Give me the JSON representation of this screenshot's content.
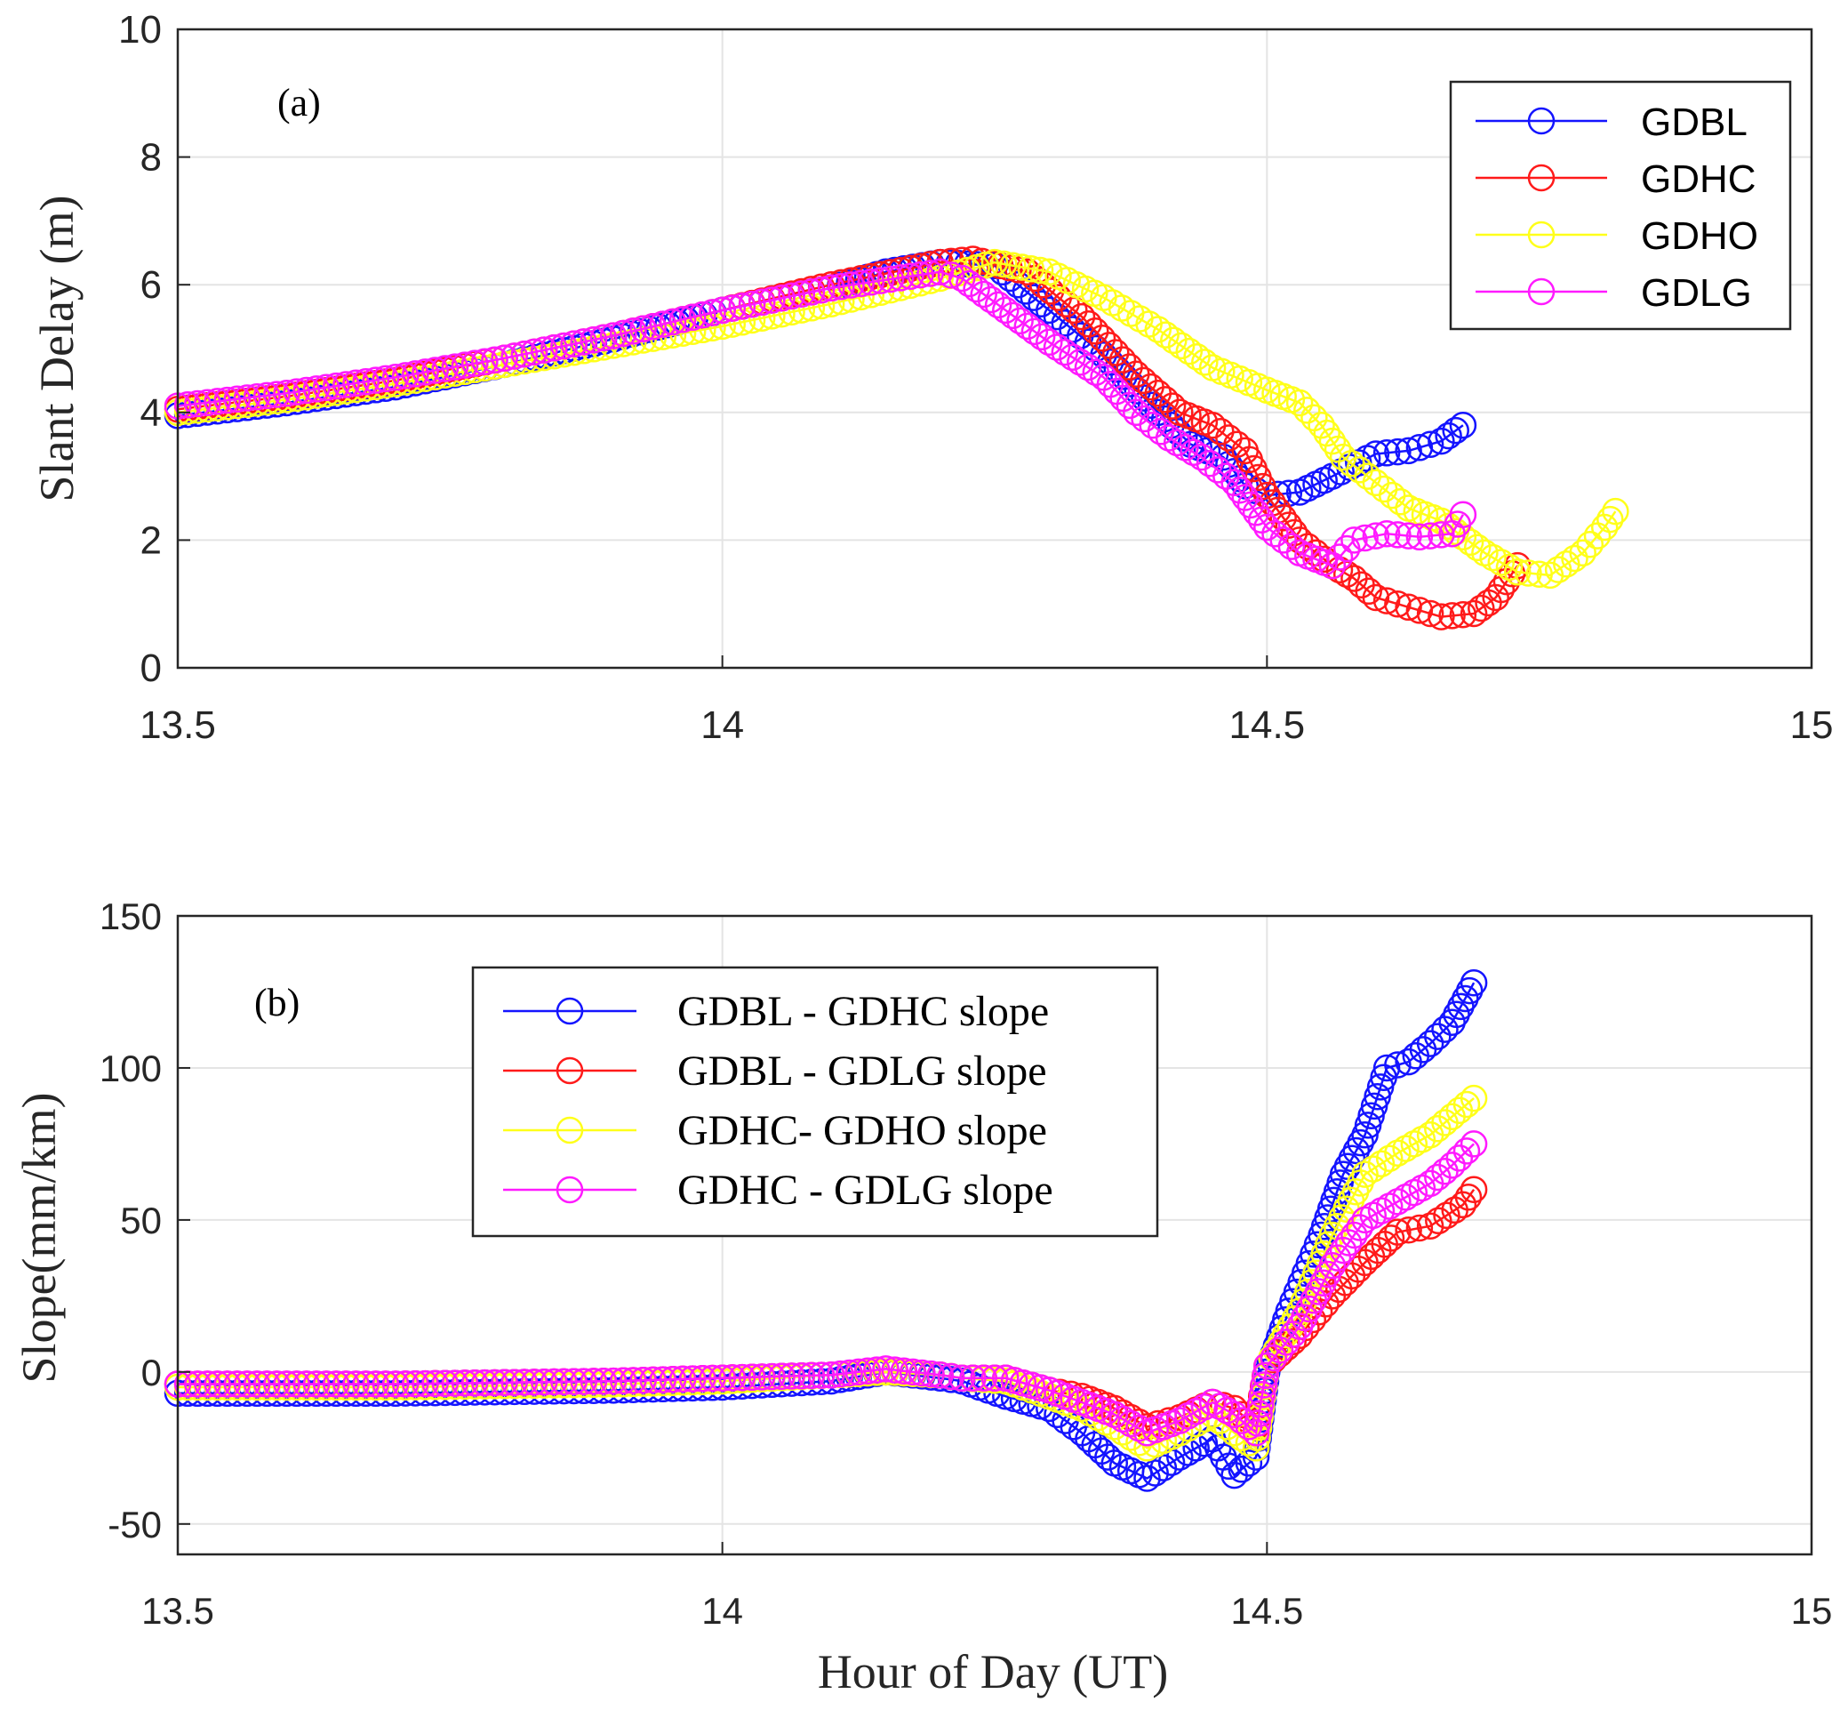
{
  "colors": {
    "blue": "#1414ff",
    "red": "#ff1a1a",
    "yellow": "#ffff1a",
    "magenta": "#ff1aff"
  },
  "chart_data": [
    {
      "type": "line",
      "panel_label": "(a)",
      "ylabel": "Slant Delay (m)",
      "xlabel": "",
      "xlim": [
        13.5,
        15
      ],
      "ylim": [
        0,
        10
      ],
      "x_ticks": [
        "13.5",
        "14",
        "14.5",
        "15"
      ],
      "y_ticks": [
        "0",
        "2",
        "4",
        "6",
        "8",
        "10"
      ],
      "grid": true,
      "legend_position": "top-right",
      "marker": "circle",
      "series": [
        {
          "name": "GDBL",
          "color": "#1414ff",
          "points": [
            [
              13.5,
              3.95
            ],
            [
              13.6,
              4.15
            ],
            [
              13.7,
              4.4
            ],
            [
              13.8,
              4.75
            ],
            [
              13.9,
              5.15
            ],
            [
              14.0,
              5.6
            ],
            [
              14.1,
              5.95
            ],
            [
              14.15,
              6.2
            ],
            [
              14.2,
              6.35
            ],
            [
              14.25,
              6.3
            ],
            [
              14.3,
              5.6
            ],
            [
              14.35,
              4.9
            ],
            [
              14.4,
              4.0
            ],
            [
              14.43,
              3.5
            ],
            [
              14.46,
              3.3
            ],
            [
              14.48,
              2.85
            ],
            [
              14.5,
              2.7
            ],
            [
              14.53,
              2.75
            ],
            [
              14.56,
              3.0
            ],
            [
              14.6,
              3.35
            ],
            [
              14.63,
              3.4
            ],
            [
              14.66,
              3.55
            ],
            [
              14.68,
              3.8
            ]
          ]
        },
        {
          "name": "GDHC",
          "color": "#ff1a1a",
          "points": [
            [
              13.5,
              4.05
            ],
            [
              13.6,
              4.25
            ],
            [
              13.7,
              4.5
            ],
            [
              13.8,
              4.85
            ],
            [
              13.9,
              5.2
            ],
            [
              14.0,
              5.6
            ],
            [
              14.1,
              6.0
            ],
            [
              14.2,
              6.35
            ],
            [
              14.23,
              6.4
            ],
            [
              14.28,
              6.2
            ],
            [
              14.33,
              5.5
            ],
            [
              14.38,
              4.6
            ],
            [
              14.42,
              4.0
            ],
            [
              14.45,
              3.8
            ],
            [
              14.48,
              3.4
            ],
            [
              14.5,
              2.7
            ],
            [
              14.53,
              2.0
            ],
            [
              14.56,
              1.6
            ],
            [
              14.58,
              1.4
            ],
            [
              14.6,
              1.1
            ],
            [
              14.63,
              0.95
            ],
            [
              14.66,
              0.8
            ],
            [
              14.69,
              0.85
            ],
            [
              14.71,
              1.1
            ],
            [
              14.73,
              1.6
            ]
          ]
        },
        {
          "name": "GDHO",
          "color": "#ffff1a",
          "points": [
            [
              13.5,
              4.0
            ],
            [
              13.6,
              4.2
            ],
            [
              13.7,
              4.45
            ],
            [
              13.8,
              4.75
            ],
            [
              13.9,
              5.05
            ],
            [
              14.0,
              5.35
            ],
            [
              14.1,
              5.7
            ],
            [
              14.2,
              6.1
            ],
            [
              14.25,
              6.35
            ],
            [
              14.3,
              6.2
            ],
            [
              14.35,
              5.8
            ],
            [
              14.4,
              5.3
            ],
            [
              14.45,
              4.7
            ],
            [
              14.5,
              4.35
            ],
            [
              14.53,
              4.15
            ],
            [
              14.55,
              3.8
            ],
            [
              14.57,
              3.3
            ],
            [
              14.6,
              2.9
            ],
            [
              14.63,
              2.5
            ],
            [
              14.66,
              2.3
            ],
            [
              14.7,
              1.8
            ],
            [
              14.73,
              1.5
            ],
            [
              14.76,
              1.45
            ],
            [
              14.79,
              1.8
            ],
            [
              14.81,
              2.2
            ],
            [
              14.82,
              2.45
            ]
          ]
        },
        {
          "name": "GDLG",
          "color": "#ff1aff",
          "points": [
            [
              13.5,
              4.1
            ],
            [
              13.6,
              4.3
            ],
            [
              13.7,
              4.55
            ],
            [
              13.8,
              4.85
            ],
            [
              13.9,
              5.2
            ],
            [
              14.0,
              5.6
            ],
            [
              14.1,
              5.95
            ],
            [
              14.2,
              6.2
            ],
            [
              14.22,
              6.1
            ],
            [
              14.26,
              5.6
            ],
            [
              14.3,
              5.1
            ],
            [
              14.35,
              4.55
            ],
            [
              14.38,
              4.0
            ],
            [
              14.41,
              3.6
            ],
            [
              14.44,
              3.3
            ],
            [
              14.47,
              2.9
            ],
            [
              14.5,
              2.2
            ],
            [
              14.53,
              1.8
            ],
            [
              14.56,
              1.6
            ],
            [
              14.58,
              2.0
            ],
            [
              14.61,
              2.1
            ],
            [
              14.64,
              2.05
            ],
            [
              14.67,
              2.1
            ],
            [
              14.68,
              2.4
            ]
          ]
        }
      ]
    },
    {
      "type": "line",
      "panel_label": "(b)",
      "ylabel": "Slope(mm/km)",
      "xlabel": "Hour of Day (UT)",
      "xlim": [
        13.5,
        15
      ],
      "ylim": [
        -60,
        150
      ],
      "x_ticks": [
        "13.5",
        "14",
        "14.5",
        "15"
      ],
      "y_ticks": [
        "-50",
        "0",
        "50",
        "100",
        "150"
      ],
      "y_tick_values": [
        -50,
        0,
        50,
        100,
        150
      ],
      "grid": true,
      "legend_position": "top-center",
      "marker": "circle",
      "series": [
        {
          "name": "GDBL - GDHC slope",
          "color": "#1414ff",
          "points": [
            [
              13.5,
              -7
            ],
            [
              13.7,
              -7
            ],
            [
              13.9,
              -6
            ],
            [
              14.0,
              -5
            ],
            [
              14.1,
              -3
            ],
            [
              14.15,
              0
            ],
            [
              14.2,
              -2
            ],
            [
              14.22,
              -3
            ],
            [
              14.26,
              -8
            ],
            [
              14.3,
              -12
            ],
            [
              14.33,
              -20
            ],
            [
              14.36,
              -30
            ],
            [
              14.39,
              -35
            ],
            [
              14.42,
              -28
            ],
            [
              14.45,
              -22
            ],
            [
              14.47,
              -34
            ],
            [
              14.49,
              -28
            ],
            [
              14.5,
              0
            ],
            [
              14.52,
              20
            ],
            [
              14.55,
              45
            ],
            [
              14.57,
              65
            ],
            [
              14.59,
              78
            ],
            [
              14.61,
              100
            ],
            [
              14.63,
              102
            ],
            [
              14.65,
              108
            ],
            [
              14.67,
              115
            ],
            [
              14.69,
              128
            ]
          ]
        },
        {
          "name": "GDBL - GDLG slope",
          "color": "#ff1a1a",
          "points": [
            [
              13.5,
              -4
            ],
            [
              13.7,
              -4
            ],
            [
              13.9,
              -3
            ],
            [
              14.0,
              -2
            ],
            [
              14.1,
              -1
            ],
            [
              14.15,
              0
            ],
            [
              14.2,
              -1
            ],
            [
              14.22,
              -2
            ],
            [
              14.26,
              -2
            ],
            [
              14.3,
              -6
            ],
            [
              14.33,
              -8
            ],
            [
              14.36,
              -12
            ],
            [
              14.39,
              -18
            ],
            [
              14.42,
              -15
            ],
            [
              14.45,
              -10
            ],
            [
              14.47,
              -12
            ],
            [
              14.49,
              -18
            ],
            [
              14.5,
              2
            ],
            [
              14.53,
              12
            ],
            [
              14.56,
              25
            ],
            [
              14.59,
              36
            ],
            [
              14.62,
              46
            ],
            [
              14.65,
              48
            ],
            [
              14.68,
              55
            ],
            [
              14.69,
              60
            ]
          ]
        },
        {
          "name": "GDHC- GDHO slope",
          "color": "#ffff1a",
          "points": [
            [
              13.5,
              -5
            ],
            [
              13.7,
              -5
            ],
            [
              13.9,
              -4
            ],
            [
              14.0,
              -3
            ],
            [
              14.1,
              -1
            ],
            [
              14.15,
              0
            ],
            [
              14.2,
              -1
            ],
            [
              14.22,
              -2
            ],
            [
              14.26,
              -3
            ],
            [
              14.3,
              -8
            ],
            [
              14.33,
              -12
            ],
            [
              14.36,
              -18
            ],
            [
              14.39,
              -25
            ],
            [
              14.42,
              -20
            ],
            [
              14.45,
              -14
            ],
            [
              14.47,
              -20
            ],
            [
              14.49,
              -25
            ],
            [
              14.5,
              2
            ],
            [
              14.53,
              20
            ],
            [
              14.56,
              45
            ],
            [
              14.59,
              65
            ],
            [
              14.62,
              72
            ],
            [
              14.65,
              78
            ],
            [
              14.67,
              84
            ],
            [
              14.69,
              90
            ]
          ]
        },
        {
          "name": "GDHC - GDLG slope",
          "color": "#ff1aff",
          "points": [
            [
              13.5,
              -4
            ],
            [
              13.7,
              -4
            ],
            [
              13.9,
              -3
            ],
            [
              14.0,
              -2
            ],
            [
              14.1,
              -1
            ],
            [
              14.15,
              1
            ],
            [
              14.2,
              -1
            ],
            [
              14.22,
              -2
            ],
            [
              14.26,
              -2
            ],
            [
              14.3,
              -6
            ],
            [
              14.33,
              -10
            ],
            [
              14.36,
              -14
            ],
            [
              14.39,
              -20
            ],
            [
              14.42,
              -16
            ],
            [
              14.45,
              -10
            ],
            [
              14.47,
              -14
            ],
            [
              14.49,
              -20
            ],
            [
              14.5,
              2
            ],
            [
              14.53,
              15
            ],
            [
              14.56,
              35
            ],
            [
              14.59,
              50
            ],
            [
              14.62,
              56
            ],
            [
              14.65,
              62
            ],
            [
              14.67,
              68
            ],
            [
              14.69,
              75
            ]
          ]
        }
      ]
    }
  ]
}
